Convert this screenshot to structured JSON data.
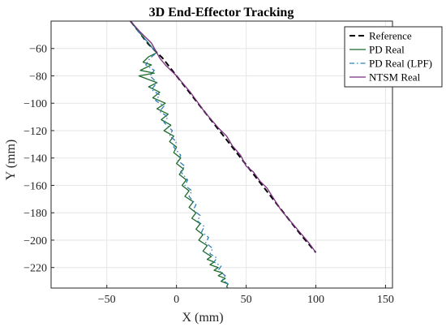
{
  "chart_data": {
    "type": "line",
    "title": "3D End-Effector Tracking",
    "xlabel": "X (mm)",
    "ylabel": "Y (mm)",
    "xlim": [
      -90,
      155
    ],
    "ylim": [
      -235,
      -40
    ],
    "xticks": [
      -50,
      0,
      50,
      100,
      150
    ],
    "yticks": [
      -60,
      -80,
      -100,
      -120,
      -140,
      -160,
      -180,
      -200,
      -220
    ],
    "grid": true,
    "legend_position": "top-right",
    "series": [
      {
        "name": "Reference",
        "style": "dashed",
        "color": "#000000",
        "x": [
          -33,
          -20,
          -10,
          0,
          10,
          20,
          30,
          40,
          50,
          60,
          70,
          80,
          90,
          100
        ],
        "y": [
          -40,
          -57,
          -67,
          -80,
          -93,
          -106,
          -119,
          -132,
          -145,
          -158,
          -171,
          -184,
          -197,
          -209
        ]
      },
      {
        "name": "PD Real",
        "style": "solid",
        "color": "#1e6b2e",
        "x": [
          -33,
          -27,
          -21,
          -17,
          -14,
          -20,
          -24,
          -18,
          -26,
          -16,
          -27,
          -14,
          -20,
          -12,
          -17,
          -8,
          -14,
          -6,
          -11,
          -4,
          -9,
          -2,
          -5,
          0,
          -2,
          3,
          0,
          5,
          2,
          7,
          4,
          9,
          6,
          12,
          9,
          14,
          11,
          17,
          14,
          19,
          16,
          22,
          19,
          25,
          22,
          27,
          24,
          30,
          27,
          33,
          30,
          35,
          32,
          37,
          36,
          37
        ],
        "y": [
          -40,
          -48,
          -55,
          -60,
          -63,
          -66,
          -70,
          -72,
          -76,
          -78,
          -80,
          -85,
          -88,
          -92,
          -96,
          -100,
          -104,
          -108,
          -112,
          -116,
          -120,
          -124,
          -128,
          -132,
          -136,
          -140,
          -144,
          -148,
          -152,
          -156,
          -160,
          -164,
          -168,
          -172,
          -176,
          -180,
          -184,
          -188,
          -192,
          -196,
          -200,
          -204,
          -208,
          -212,
          -214,
          -216,
          -218,
          -220,
          -222,
          -224,
          -226,
          -228,
          -230,
          -232,
          -234,
          -235
        ]
      },
      {
        "name": "PD Real (LPF)",
        "style": "dashdot",
        "color": "#2f7fb5",
        "x": [
          -33,
          -27,
          -21,
          -17,
          -14,
          -19,
          -22,
          -16,
          -19,
          -14,
          -18,
          -12,
          -15,
          -9,
          -12,
          -6,
          -9,
          -3,
          -5,
          0,
          -2,
          3,
          1,
          6,
          3,
          8,
          6,
          11,
          9,
          14,
          12,
          17,
          15,
          20,
          18,
          23,
          21,
          26,
          24,
          29,
          27,
          32,
          30,
          35,
          33,
          37,
          36,
          37
        ],
        "y": [
          -40,
          -48,
          -55,
          -60,
          -63,
          -67,
          -72,
          -76,
          -80,
          -85,
          -90,
          -94,
          -98,
          -102,
          -106,
          -110,
          -114,
          -120,
          -124,
          -128,
          -132,
          -138,
          -142,
          -146,
          -150,
          -156,
          -160,
          -164,
          -168,
          -174,
          -178,
          -182,
          -186,
          -190,
          -194,
          -198,
          -202,
          -206,
          -210,
          -213,
          -216,
          -219,
          -222,
          -226,
          -229,
          -232,
          -234,
          -235
        ]
      },
      {
        "name": "NTSM Real",
        "style": "solid",
        "color": "#7b2d82",
        "x": [
          -33,
          -26,
          -22,
          -18,
          -12,
          -8,
          0,
          5,
          10,
          15,
          20,
          25,
          30,
          36,
          40,
          46,
          50,
          55,
          60,
          65,
          70,
          75,
          80,
          85,
          90,
          95,
          100
        ],
        "y": [
          -40,
          -48,
          -52,
          -56,
          -67,
          -72,
          -80,
          -86,
          -92,
          -99,
          -106,
          -112,
          -118,
          -124,
          -131,
          -138,
          -146,
          -150,
          -157,
          -162,
          -170,
          -178,
          -184,
          -190,
          -196,
          -202,
          -209
        ]
      }
    ]
  }
}
